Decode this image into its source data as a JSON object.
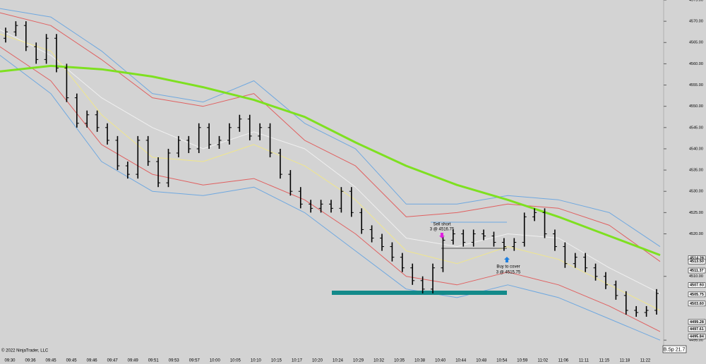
{
  "chart_data": {
    "type": "ohlc",
    "copyright": "© 2022 NinjaTrader, LLC",
    "status_label": "B.Sp 21.7",
    "categories": [
      "09:30",
      "09:36",
      "09:45",
      "09:45",
      "09:46",
      "09:47",
      "09:49",
      "09:51",
      "09:53",
      "09:57",
      "10:00",
      "10:05",
      "10:10",
      "10:15",
      "10:17",
      "10:20",
      "10:24",
      "10:29",
      "10:32",
      "10:35",
      "10:38",
      "10:40",
      "10:44",
      "10:48",
      "10:54",
      "10:59",
      "11:02",
      "11:06",
      "11:11",
      "11:15",
      "11:18",
      "11:22"
    ],
    "ylim": [
      4493.7,
      4575
    ],
    "yticks": [
      {
        "value": 4575,
        "label": "4575.00"
      },
      {
        "value": 4570,
        "label": "4570.00"
      },
      {
        "value": 4565,
        "label": "4565.00"
      },
      {
        "value": 4560,
        "label": "4560.00"
      },
      {
        "value": 4555,
        "label": "4555.00"
      },
      {
        "value": 4550,
        "label": "4550.00"
      },
      {
        "value": 4545,
        "label": "4545.00"
      },
      {
        "value": 4540,
        "label": "4540.00"
      },
      {
        "value": 4535,
        "label": "4535.00"
      },
      {
        "value": 4530,
        "label": "4530.00"
      },
      {
        "value": 4525,
        "label": "4525.00"
      },
      {
        "value": 4520,
        "label": "4520.00"
      },
      {
        "value": 4510,
        "label": "4510.00"
      },
      {
        "value": 4495,
        "label": "4495.00"
      }
    ],
    "price_markers": [
      4514.28,
      {
        "value": 4513.5,
        "label": "4513.50"
      },
      4511.37,
      4507.93,
      4505.75,
      {
        "value": 4503.6,
        "label": "4503.60"
      },
      4499.28,
      4497.61,
      4495.84
    ],
    "bar_color": "#000000",
    "bars": [
      [
        4566,
        4568.5,
        4565,
        4567.5
      ],
      [
        4567.5,
        4570,
        4566.5,
        4569
      ],
      [
        4569,
        4570,
        4563,
        4564
      ],
      [
        4564,
        4565,
        4560,
        4561
      ],
      [
        4561,
        4567,
        4560,
        4566
      ],
      [
        4566,
        4567,
        4558,
        4559
      ],
      [
        4559,
        4560,
        4551,
        4552
      ],
      [
        4552,
        4553,
        4545,
        4546
      ],
      [
        4546,
        4549,
        4545,
        4548
      ],
      [
        4548,
        4549,
        4544,
        4545
      ],
      [
        4545,
        4546,
        4541,
        4542
      ],
      [
        4542,
        4543,
        4535,
        4536
      ],
      [
        4536,
        4537,
        4533,
        4534
      ],
      [
        4534,
        4543,
        4533,
        4542
      ],
      [
        4542,
        4543,
        4536,
        4537
      ],
      [
        4537,
        4538,
        4531,
        4532
      ],
      [
        4532,
        4540,
        4531,
        4539
      ],
      [
        4539,
        4543,
        4538,
        4542
      ],
      [
        4542,
        4543,
        4539,
        4540
      ],
      [
        4540,
        4546,
        4539,
        4545
      ],
      [
        4545,
        4546,
        4540,
        4541
      ],
      [
        4541,
        4543,
        4540,
        4542
      ],
      [
        4542,
        4546,
        4541,
        4545
      ],
      [
        4545,
        4548,
        4544,
        4547
      ],
      [
        4547,
        4548,
        4542,
        4543
      ],
      [
        4543,
        4546,
        4542,
        4545
      ],
      [
        4545,
        4546,
        4538,
        4539
      ],
      [
        4539,
        4540,
        4533,
        4534
      ],
      [
        4534,
        4535,
        4529,
        4530
      ],
      [
        4530,
        4531,
        4526,
        4527
      ],
      [
        4527,
        4528,
        4525,
        4526
      ],
      [
        4526,
        4528,
        4525,
        4527
      ],
      [
        4527,
        4528,
        4525,
        4526
      ],
      [
        4526,
        4531,
        4525,
        4530
      ],
      [
        4530,
        4531,
        4524,
        4525
      ],
      [
        4525,
        4526,
        4520,
        4521
      ],
      [
        4521,
        4522,
        4518,
        4519
      ],
      [
        4519,
        4520,
        4516,
        4517
      ],
      [
        4517,
        4518,
        4513.5,
        4514.5
      ],
      [
        4514.5,
        4515.5,
        4511,
        4512
      ],
      [
        4512,
        4513,
        4508,
        4509
      ],
      [
        4509,
        4510,
        4506,
        4507
      ],
      [
        4507,
        4513,
        4506,
        4512
      ],
      [
        4512,
        4519.5,
        4511,
        4518.5
      ],
      [
        4518.5,
        4521,
        4517.5,
        4520
      ],
      [
        4520,
        4521,
        4517,
        4518
      ],
      [
        4518,
        4521,
        4517,
        4520
      ],
      [
        4520,
        4521,
        4518.5,
        4519.5
      ],
      [
        4519.5,
        4520.5,
        4517,
        4518
      ],
      [
        4518,
        4519,
        4516,
        4517
      ],
      [
        4517,
        4519,
        4516,
        4518
      ],
      [
        4518,
        4525,
        4517,
        4524
      ],
      [
        4524,
        4526,
        4523,
        4525
      ],
      [
        4525,
        4526,
        4519,
        4520
      ],
      [
        4520,
        4521,
        4516,
        4517
      ],
      [
        4517,
        4518,
        4512,
        4513
      ],
      [
        4513,
        4515.5,
        4512,
        4514.5
      ],
      [
        4514.5,
        4515.5,
        4511,
        4512
      ],
      [
        4512,
        4513,
        4509,
        4510
      ],
      [
        4510,
        4511,
        4507,
        4508
      ],
      [
        4508,
        4509,
        4504.5,
        4505.5
      ],
      [
        4505.5,
        4506.5,
        4501,
        4502
      ],
      [
        4502,
        4503,
        4500.5,
        4501.5
      ],
      [
        4501.5,
        4503,
        4500.5,
        4502
      ],
      [
        4502,
        4507,
        4501,
        4506
      ]
    ],
    "lines": [
      {
        "color": "#6fa8e0",
        "width": 1,
        "values": [
          4573,
          4571,
          4563,
          4553,
          4551,
          4556,
          4546,
          4540,
          4527,
          4527,
          4529,
          4528,
          4525,
          4517
        ]
      },
      {
        "color": "#e06060",
        "width": 1,
        "values": [
          4572,
          4569,
          4561,
          4552,
          4550,
          4553,
          4542,
          4536,
          4524,
          4525,
          4527,
          4526,
          4522,
          4513.5
        ]
      },
      {
        "color": "#f0f0f0",
        "width": 1,
        "values": [
          4568,
          4562,
          4552,
          4545,
          4540,
          4544,
          4540,
          4531,
          4519,
          4517,
          4520,
          4519,
          4512,
          4506
        ]
      },
      {
        "color": "#f0e68c",
        "width": 1,
        "values": [
          4567,
          4563,
          4548,
          4538,
          4537,
          4541,
          4536,
          4528,
          4516,
          4513,
          4517,
          4514,
          4508,
          4502
        ]
      },
      {
        "color": "#e06060",
        "width": 1,
        "values": [
          4564,
          4556,
          4541,
          4534,
          4531.5,
          4533,
          4528,
          4520,
          4510,
          4508,
          4511,
          4508,
          4503,
          4497
        ]
      },
      {
        "color": "#6fa8e0",
        "width": 1,
        "values": [
          4562,
          4553,
          4537,
          4530,
          4529,
          4531,
          4525,
          4516,
          4507,
          4505,
          4508,
          4505,
          4500,
          4495
        ]
      },
      {
        "color": "#7ee020",
        "width": 3,
        "values": [
          4558.2,
          4559.5,
          4558.7,
          4557,
          4554.5,
          4551.5,
          4547.5,
          4541.5,
          4536,
          4531.5,
          4528,
          4524,
          4519.5,
          4515
        ]
      }
    ],
    "annotations": {
      "sell": [
        "Sell short",
        "3 @ 4516.75"
      ],
      "cover": [
        "Buy to cover",
        "3 @ 4515.75"
      ]
    }
  }
}
